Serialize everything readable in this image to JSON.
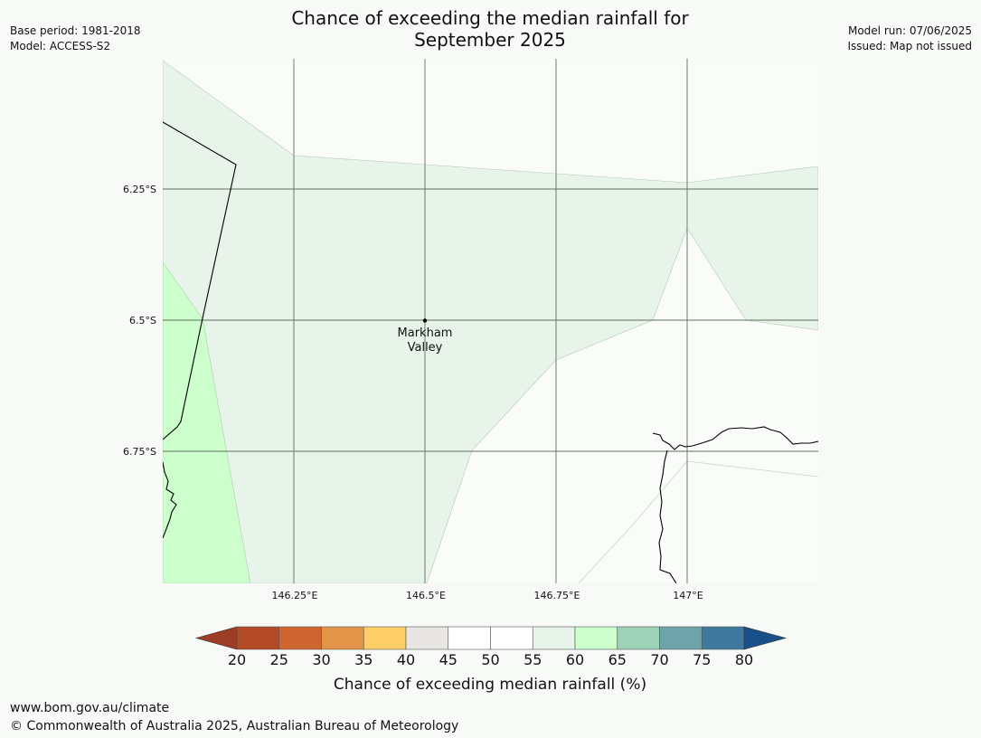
{
  "title_line1": "Chance of exceeding the median rainfall for",
  "title_line2": "September 2025",
  "base_period": "Base period: 1981-2018",
  "model": "Model: ACCESS-S2",
  "model_run": "Model run: 07/06/2025",
  "issued": "Issued: Map not issued",
  "map": {
    "lat_labels": [
      "6.25°S",
      "6.5°S",
      "6.75°S"
    ],
    "lon_labels": [
      "146.25°E",
      "146.5°E",
      "146.75°E",
      "147°E"
    ],
    "place": {
      "name_line1": "Markham",
      "name_line2": "Valley"
    }
  },
  "legend": {
    "title": "Chance of exceeding median rainfall (%)",
    "ticks": [
      "20",
      "25",
      "30",
      "35",
      "40",
      "45",
      "50",
      "55",
      "60",
      "65",
      "70",
      "75",
      "80"
    ],
    "colors": {
      "below_20": "#9c3d26",
      "b20_25": "#b34a28",
      "b25_30": "#cf6531",
      "b30_35": "#e49448",
      "b35_40": "#fdcd66",
      "b40_45": "#e8e6e3",
      "b45_50": "#ffffff",
      "b50_55": "#ffffff",
      "b55_60": "#e8f4e9",
      "b60_65": "#ccffcc",
      "b65_70": "#9dd1b8",
      "b70_75": "#6ea4a8",
      "b75_80": "#3f7a9e",
      "above_80": "#1a5089"
    }
  },
  "footer_url": "www.bom.gov.au/climate",
  "footer_copyright": "© Commonwealth of Australia 2025, Australian Bureau of Meteorology"
}
